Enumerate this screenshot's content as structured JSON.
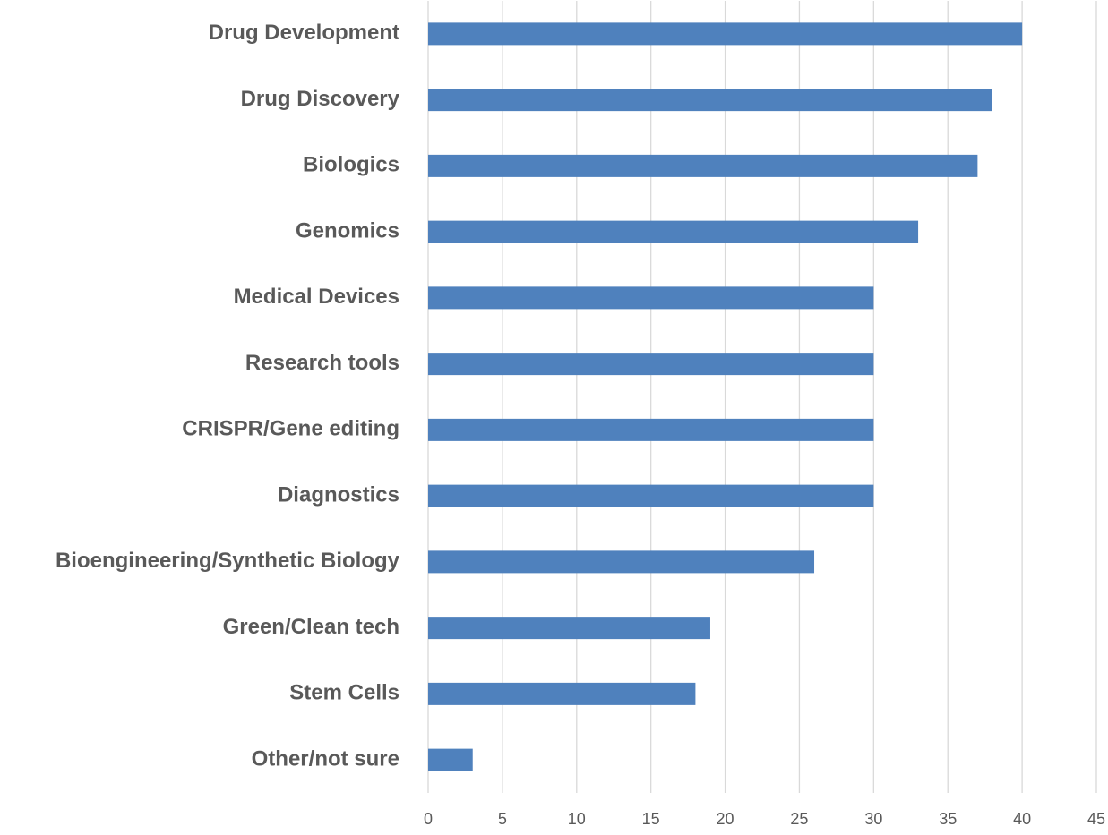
{
  "chart_data": {
    "type": "bar",
    "orientation": "horizontal",
    "categories": [
      "Drug Development",
      "Drug Discovery",
      "Biologics",
      "Genomics",
      "Medical Devices",
      "Research tools",
      "CRISPR/Gene editing",
      "Diagnostics",
      "Bioengineering/Synthetic Biology",
      "Green/Clean tech",
      "Stem Cells",
      "Other/not sure"
    ],
    "values": [
      40,
      38,
      37,
      33,
      30,
      30,
      30,
      30,
      26,
      19,
      18,
      3
    ],
    "color": "#4f81bd",
    "xlim": [
      0,
      45
    ],
    "xticks": [
      0,
      5,
      10,
      15,
      20,
      25,
      30,
      35,
      40,
      45
    ],
    "grid": true
  }
}
